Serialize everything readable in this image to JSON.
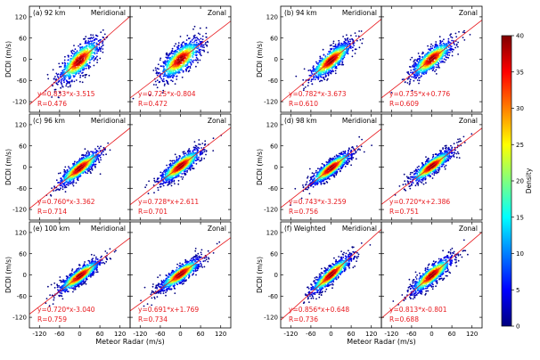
{
  "figure": {
    "y_axis_label": "DCDI (m/s)",
    "x_axis_label": "Meteor Radar (m/s)",
    "colorbar_label": "Density",
    "colorbar_ticks": [
      0,
      5,
      10,
      15,
      20,
      25,
      30,
      35,
      40
    ]
  },
  "chart_data": [
    {
      "type": "scatter",
      "panel": "(a) 92 km",
      "component": "Meridional",
      "slope": 0.833,
      "intercept": -3.515,
      "fit_text": "y=0.833*x-3.515",
      "r_text": "R=0.476",
      "xlim": [
        -150,
        150
      ],
      "ylim": [
        -150,
        150
      ],
      "xticks": [
        -120,
        -60,
        0,
        60,
        120
      ],
      "yticks": [
        -120,
        -60,
        0,
        60,
        120
      ],
      "grid": false
    },
    {
      "type": "scatter",
      "panel": "",
      "component": "Zonal",
      "slope": 0.725,
      "intercept": -0.804,
      "fit_text": "y=0.725*x-0.804",
      "r_text": "R=0.472",
      "xlim": [
        -150,
        150
      ],
      "ylim": [
        -150,
        150
      ],
      "xticks": [
        -120,
        -60,
        0,
        60,
        120
      ],
      "yticks": [
        -120,
        -60,
        0,
        60,
        120
      ],
      "grid": false
    },
    {
      "type": "scatter",
      "panel": "(b) 94 km",
      "component": "Meridional",
      "slope": 0.782,
      "intercept": -3.673,
      "fit_text": "y=0.782*x-3.673",
      "r_text": "R=0.610",
      "xlim": [
        -150,
        150
      ],
      "ylim": [
        -150,
        150
      ],
      "xticks": [
        -120,
        -60,
        0,
        60,
        120
      ],
      "yticks": [
        -120,
        -60,
        0,
        60,
        120
      ],
      "grid": false
    },
    {
      "type": "scatter",
      "panel": "",
      "component": "Zonal",
      "slope": 0.735,
      "intercept": 0.776,
      "fit_text": "y=0.735*x+0.776",
      "r_text": "R=0.609",
      "xlim": [
        -150,
        150
      ],
      "ylim": [
        -150,
        150
      ],
      "xticks": [
        -120,
        -60,
        0,
        60,
        120
      ],
      "yticks": [
        -120,
        -60,
        0,
        60,
        120
      ],
      "grid": false
    },
    {
      "type": "scatter",
      "panel": "(c) 96 km",
      "component": "Meridional",
      "slope": 0.76,
      "intercept": -3.362,
      "fit_text": "y=0.760*x-3.362",
      "r_text": "R=0.714",
      "xlim": [
        -150,
        150
      ],
      "ylim": [
        -150,
        150
      ],
      "xticks": [
        -120,
        -60,
        0,
        60,
        120
      ],
      "yticks": [
        -120,
        -60,
        0,
        60,
        120
      ],
      "grid": false
    },
    {
      "type": "scatter",
      "panel": "",
      "component": "Zonal",
      "slope": 0.728,
      "intercept": 2.611,
      "fit_text": "y=0.728*x+2.611",
      "r_text": "R=0.701",
      "xlim": [
        -150,
        150
      ],
      "ylim": [
        -150,
        150
      ],
      "xticks": [
        -120,
        -60,
        0,
        60,
        120
      ],
      "yticks": [
        -120,
        -60,
        0,
        60,
        120
      ],
      "grid": false
    },
    {
      "type": "scatter",
      "panel": "(d) 98 km",
      "component": "Meridional",
      "slope": 0.743,
      "intercept": -3.259,
      "fit_text": "y=0.743*x-3.259",
      "r_text": "R=0.756",
      "xlim": [
        -150,
        150
      ],
      "ylim": [
        -150,
        150
      ],
      "xticks": [
        -120,
        -60,
        0,
        60,
        120
      ],
      "yticks": [
        -120,
        -60,
        0,
        60,
        120
      ],
      "grid": false
    },
    {
      "type": "scatter",
      "panel": "",
      "component": "Zonal",
      "slope": 0.72,
      "intercept": 2.386,
      "fit_text": "y=0.720*x+2.386",
      "r_text": "R=0.751",
      "xlim": [
        -150,
        150
      ],
      "ylim": [
        -150,
        150
      ],
      "xticks": [
        -120,
        -60,
        0,
        60,
        120
      ],
      "yticks": [
        -120,
        -60,
        0,
        60,
        120
      ],
      "grid": false
    },
    {
      "type": "scatter",
      "panel": "(e) 100 km",
      "component": "Meridional",
      "slope": 0.72,
      "intercept": -3.04,
      "fit_text": "y=0.720*x-3.040",
      "r_text": "R=0.759",
      "xlim": [
        -150,
        150
      ],
      "ylim": [
        -150,
        150
      ],
      "xticks": [
        -120,
        -60,
        0,
        60,
        120
      ],
      "yticks": [
        -120,
        -60,
        0,
        60,
        120
      ],
      "grid": false
    },
    {
      "type": "scatter",
      "panel": "",
      "component": "Zonal",
      "slope": 0.691,
      "intercept": 1.769,
      "fit_text": "y=0.691*x+1.769",
      "r_text": "R=0.734",
      "xlim": [
        -150,
        150
      ],
      "ylim": [
        -150,
        150
      ],
      "xticks": [
        -120,
        -60,
        0,
        60,
        120
      ],
      "yticks": [
        -120,
        -60,
        0,
        60,
        120
      ],
      "grid": false
    },
    {
      "type": "scatter",
      "panel": "(f) Weighted",
      "component": "Meridional",
      "slope": 0.856,
      "intercept": 0.648,
      "fit_text": "y=0.856*x+0.648",
      "r_text": "R=0.736",
      "xlim": [
        -150,
        150
      ],
      "ylim": [
        -150,
        150
      ],
      "xticks": [
        -120,
        -60,
        0,
        60,
        120
      ],
      "yticks": [
        -120,
        -60,
        0,
        60,
        120
      ],
      "grid": false
    },
    {
      "type": "scatter",
      "panel": "",
      "component": "Zonal",
      "slope": 0.813,
      "intercept": -0.801,
      "fit_text": "y=0.813*x-0.801",
      "r_text": "R=0.688",
      "xlim": [
        -150,
        150
      ],
      "ylim": [
        -150,
        150
      ],
      "xticks": [
        -120,
        -60,
        0,
        60,
        120
      ],
      "yticks": [
        -120,
        -60,
        0,
        60,
        120
      ],
      "grid": false
    }
  ],
  "colors": {
    "fit_line": "#e8191e",
    "annotation": "#e8191e",
    "axis": "#000000",
    "colormap": [
      "#00007f",
      "#0000ff",
      "#007fff",
      "#00ffff",
      "#7fff7f",
      "#ffff00",
      "#ff7f00",
      "#ff0000",
      "#7f0000"
    ]
  }
}
